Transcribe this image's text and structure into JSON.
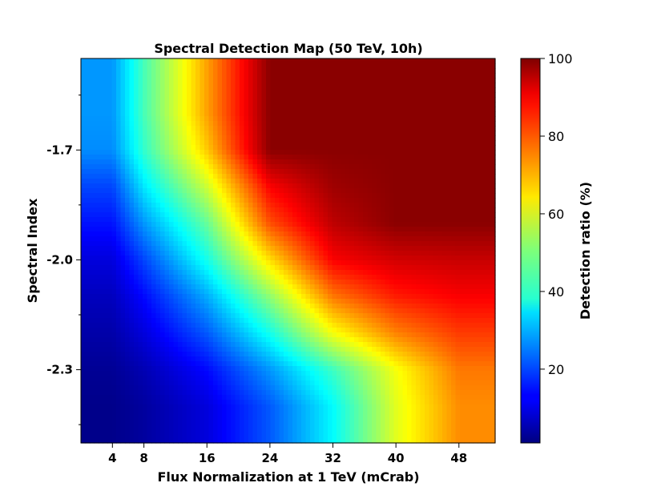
{
  "chart_data": {
    "type": "heatmap",
    "title": "Spectral Detection Map (50 TeV, 10h)",
    "xlabel": "Flux Normalization at 1 TeV (mCrab)",
    "ylabel": "Spectral Index",
    "colorbar_label": "Detection ratio (%)",
    "colormap": "jet",
    "clim": [
      1,
      100
    ],
    "x_ticks": [
      4,
      8,
      16,
      24,
      32,
      40,
      48
    ],
    "x_tick_labels": [
      "4",
      "8",
      "16",
      "24",
      "32",
      "40",
      "48"
    ],
    "y_ticks": [
      -1.7,
      -2.0,
      -2.3
    ],
    "y_tick_labels": [
      "-1.7",
      "-2.0",
      "-2.3"
    ],
    "colorbar_ticks": [
      20,
      40,
      60,
      80,
      100
    ],
    "colorbar_tick_labels": [
      "20",
      "40",
      "60",
      "80",
      "100"
    ],
    "x_grid": [
      4,
      8,
      16,
      24,
      32,
      40,
      48
    ],
    "y_grid": [
      -1.6,
      -1.7,
      -1.8,
      -1.9,
      -2.0,
      -2.1,
      -2.2,
      -2.3,
      -2.4
    ],
    "values": [
      [
        28,
        45,
        72,
        99,
        99,
        99,
        99
      ],
      [
        27,
        43,
        68,
        99,
        99,
        99,
        99
      ],
      [
        20,
        36,
        58,
        88,
        97,
        99,
        99
      ],
      [
        15,
        28,
        48,
        80,
        94,
        99,
        99
      ],
      [
        10,
        20,
        40,
        66,
        88,
        92,
        93
      ],
      [
        7,
        14,
        30,
        52,
        76,
        85,
        88
      ],
      [
        5,
        10,
        22,
        40,
        62,
        75,
        82
      ],
      [
        3,
        6,
        14,
        28,
        44,
        62,
        76
      ],
      [
        2,
        4,
        10,
        22,
        38,
        60,
        74
      ]
    ]
  }
}
